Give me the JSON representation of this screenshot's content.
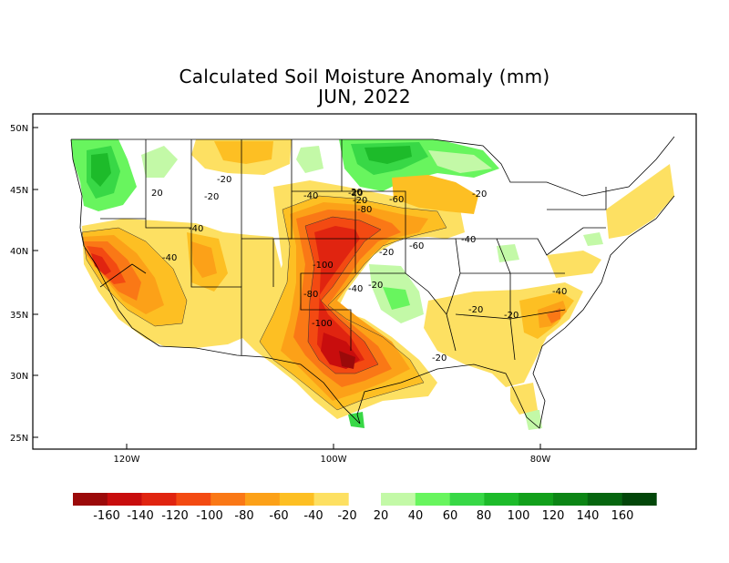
{
  "title": "Calculated Soil Moisture Anomaly (mm)",
  "subtitle": "JUN, 2022",
  "lat_ticks": [
    "50N",
    "45N",
    "40N",
    "35N",
    "30N",
    "25N"
  ],
  "lon_ticks": [
    "120W",
    "100W",
    "80W"
  ],
  "contour_labels": [
    "20",
    "-20",
    "-20",
    "-40",
    "-20",
    "-80",
    "-60",
    "-20",
    "20",
    "-20",
    "-40",
    "-40",
    "-20",
    "-60",
    "-40",
    "-100",
    "-80",
    "-40",
    "-20",
    "-100",
    "-20",
    "-20",
    "-40",
    "-20"
  ],
  "legend": {
    "negative": [
      "-160",
      "-140",
      "-120",
      "-100",
      "-80",
      "-60",
      "-40",
      "-20"
    ],
    "positive": [
      "20",
      "40",
      "60",
      "80",
      "100",
      "120",
      "140",
      "160"
    ],
    "colors_negative": [
      "#9b0a0a",
      "#c80d0d",
      "#e02410",
      "#f34a12",
      "#fa7816",
      "#fca118",
      "#fdbf23",
      "#fde062"
    ],
    "colors_positive": [
      "#c3f9a7",
      "#68f55e",
      "#38d846",
      "#1dbb2a",
      "#12a01b",
      "#0c8515",
      "#066610",
      "#03460a"
    ]
  }
}
